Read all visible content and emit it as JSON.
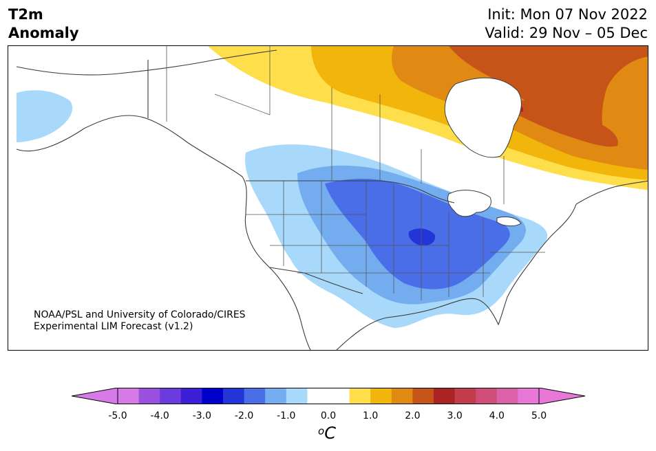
{
  "header": {
    "variable": "T2m",
    "subtitle": "Anomaly",
    "init": "Init: Mon 07 Nov 2022",
    "valid": "Valid: 29 Nov – 05 Dec"
  },
  "credit": {
    "line1": "NOAA/PSL and University of Colorado/CIRES",
    "line2": "Experimental LIM Forecast (v1.2)"
  },
  "colorbar": {
    "ticks": [
      "-5.0",
      "-4.0",
      "-3.0",
      "-2.0",
      "-1.0",
      "0.0",
      "1.0",
      "2.0",
      "3.0",
      "4.0",
      "5.0"
    ],
    "colors": [
      "#d67ae8",
      "#9b51e0",
      "#6b3bde",
      "#3a1fd6",
      "#0000cd",
      "#2435d8",
      "#4a6ee8",
      "#74acf0",
      "#a9d9fa",
      "#ffffff",
      "#ffffff",
      "#fedf4b",
      "#f2b50c",
      "#e08a14",
      "#c65419",
      "#ac2324",
      "#c23c4c",
      "#cf4d78",
      "#db62a8",
      "#e878d8"
    ],
    "under_color": "#d67ae8",
    "over_color": "#e878d8",
    "unit_base": "C",
    "unit_sup": "o"
  },
  "map": {
    "region": "North America",
    "anomaly_colors": {
      "warm1": "#fedf4b",
      "warm2": "#f2b50c",
      "warm3": "#e08a14",
      "warm4": "#c65419",
      "warm5": "#ac2324",
      "cool1": "#a9d9fa",
      "cool2": "#74acf0",
      "cool3": "#4a6ee8",
      "cool4": "#2435d8",
      "border": "#3a3a3a"
    }
  }
}
